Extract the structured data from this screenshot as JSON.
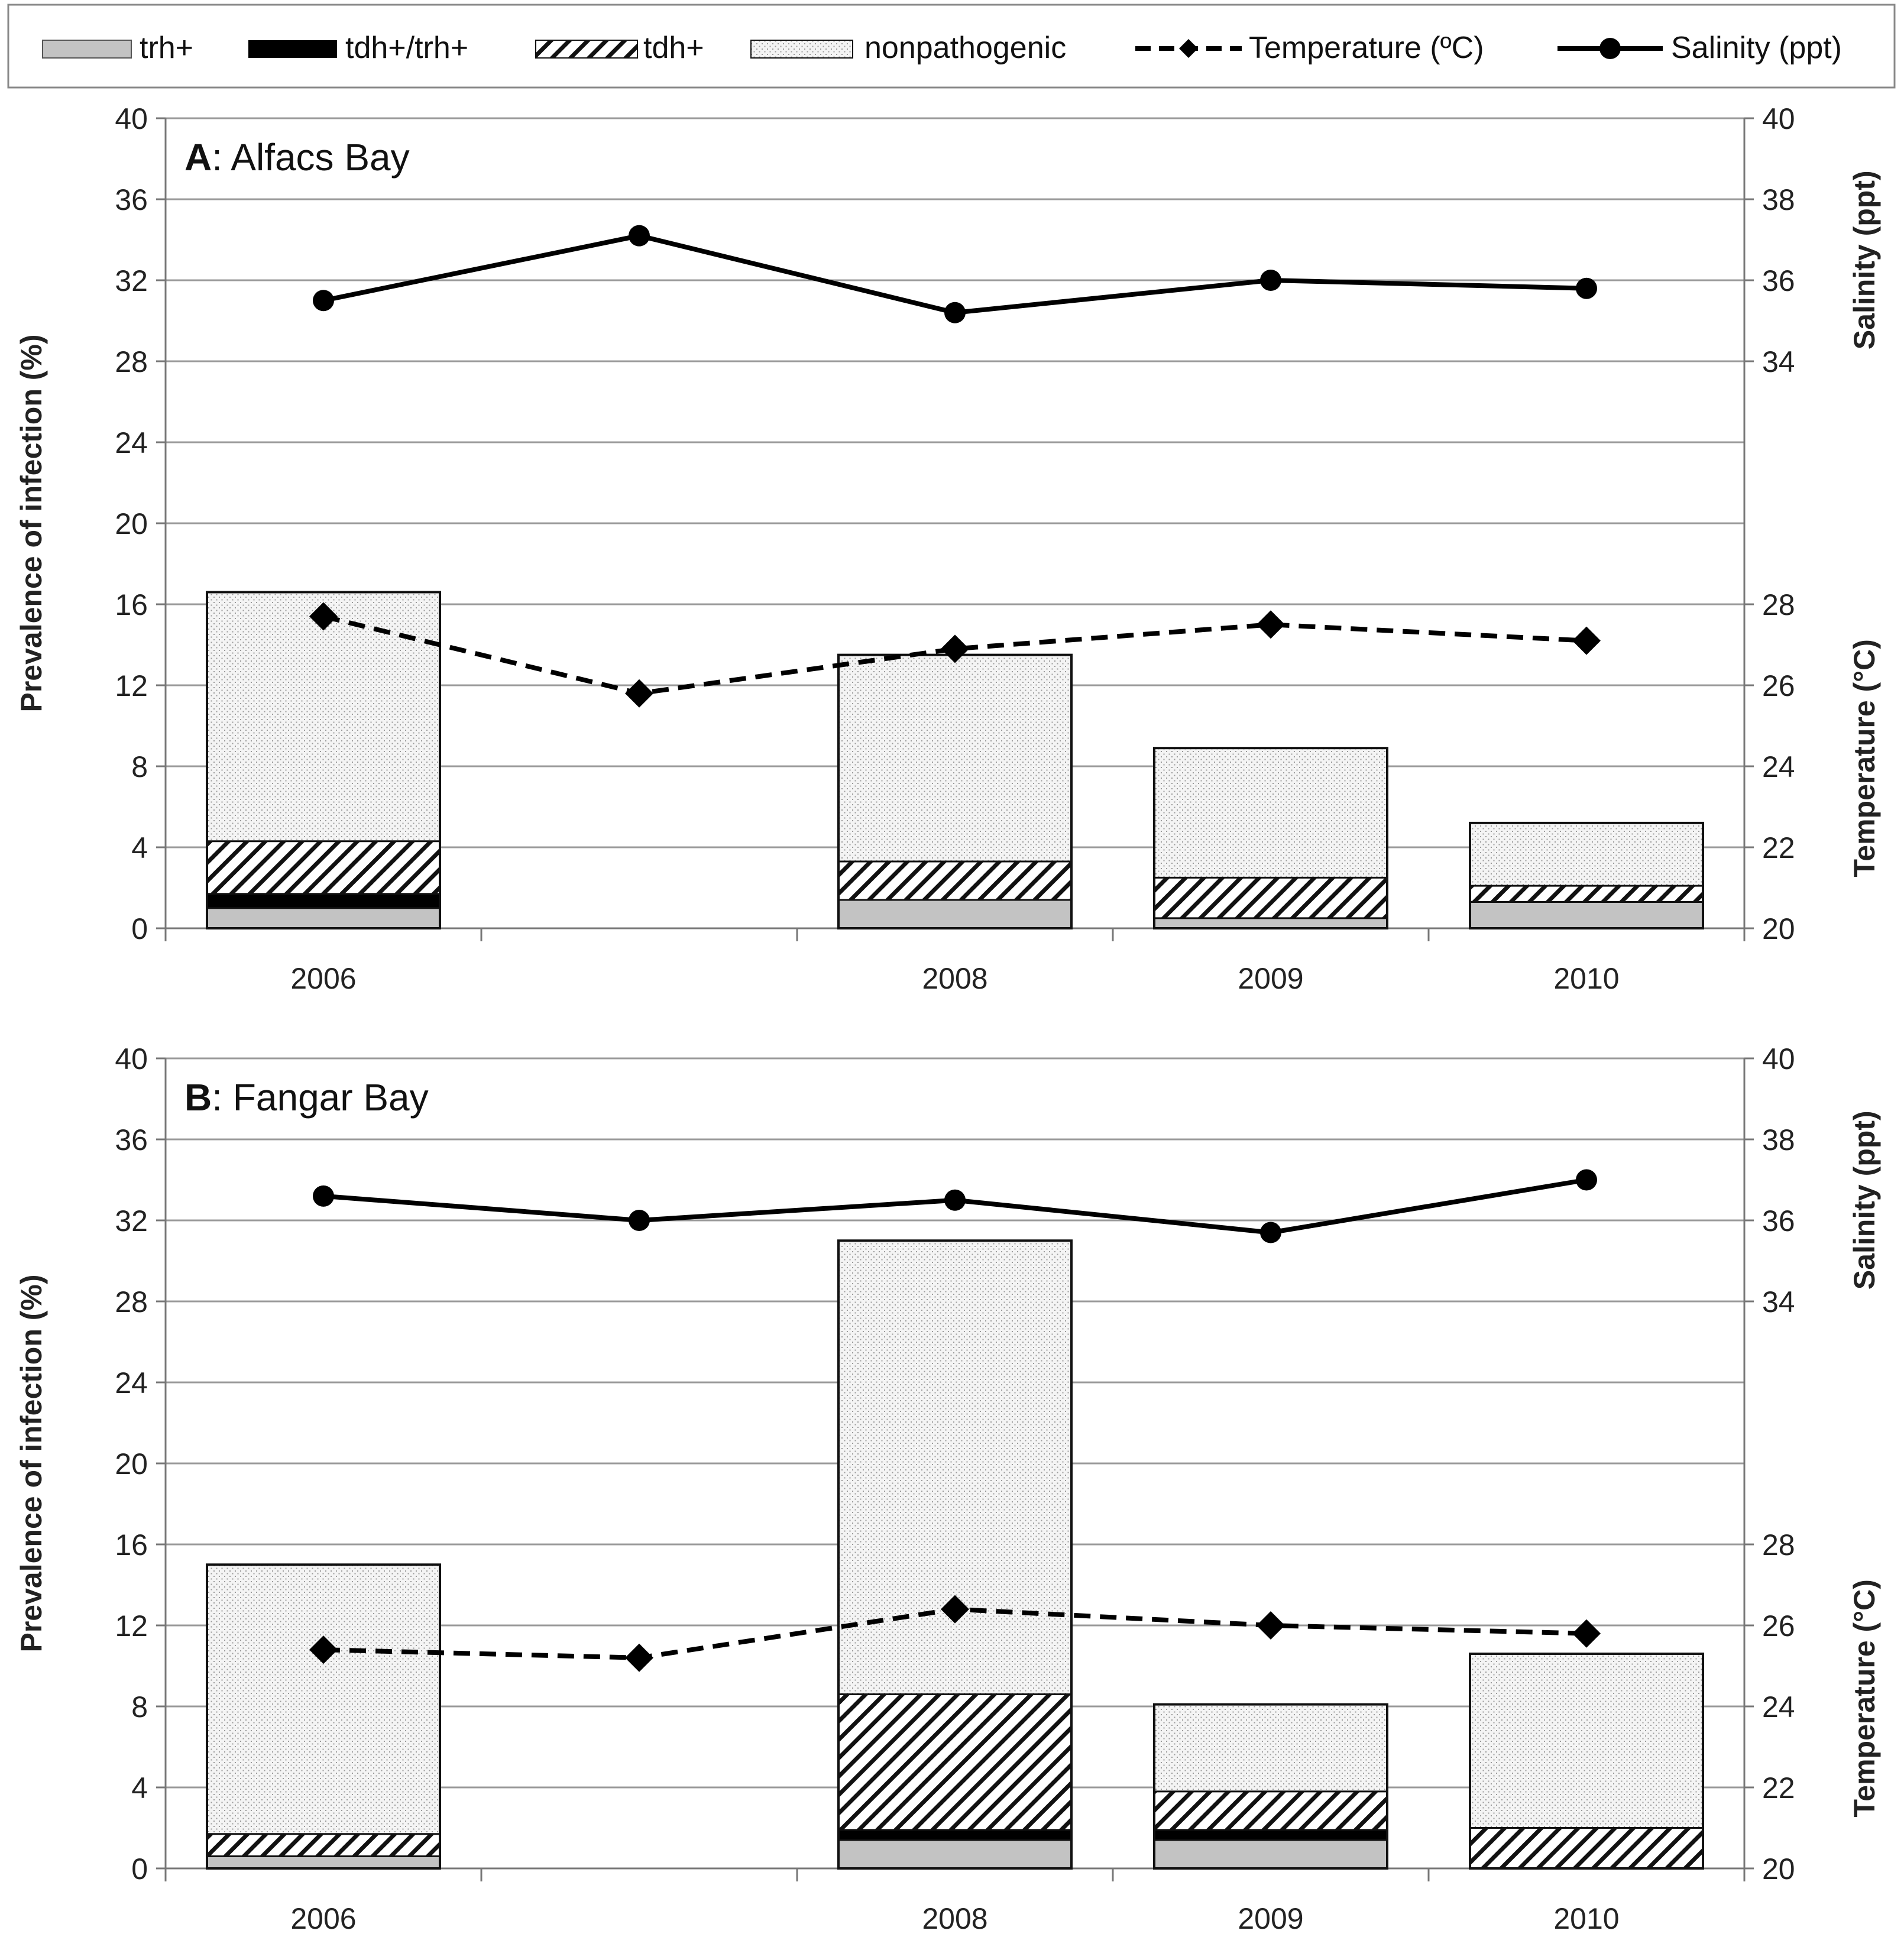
{
  "chart_data": {
    "type": "bar",
    "legend": {
      "position": "top",
      "entries": [
        "trh+",
        "tdh+/trh+",
        "tdh+",
        "nonpathogenic",
        "Temperature (ºC)",
        "Salinity (ppt)"
      ]
    },
    "categories": [
      "2006",
      "",
      "2008",
      "2009",
      "2010"
    ],
    "panels": [
      {
        "title_letter": "A",
        "title_rest": ": Alfacs Bay",
        "ylabel_left": "Prevalence of infection (%)",
        "ylabel_right_top": "Salinity (ppt)",
        "ylabel_right_bottom": "Temperature (°C)",
        "left_ylim": [
          0,
          40
        ],
        "left_ticks": [
          "0",
          "4",
          "8",
          "12",
          "16",
          "20",
          "24",
          "28",
          "32",
          "36",
          "40"
        ],
        "salinity_ylim": [
          20,
          40
        ],
        "salinity_ticks": [
          "34",
          "36",
          "38",
          "40"
        ],
        "temperature_ylim": [
          20,
          40
        ],
        "temperature_ticks": [
          "20",
          "22",
          "24",
          "26",
          "28"
        ],
        "series": [
          {
            "name": "trh+",
            "values": [
              1.0,
              null,
              1.4,
              0.5,
              1.3
            ]
          },
          {
            "name": "tdh+/trh+",
            "values": [
              0.7,
              null,
              0,
              0,
              0
            ]
          },
          {
            "name": "tdh+",
            "values": [
              2.6,
              null,
              1.9,
              2.0,
              0.8
            ]
          },
          {
            "name": "nonpathogenic",
            "values": [
              12.3,
              null,
              10.2,
              6.4,
              3.1
            ]
          }
        ],
        "temperature": [
          27.7,
          25.8,
          26.9,
          27.5,
          27.1
        ],
        "salinity": [
          35.5,
          37.1,
          35.2,
          36.0,
          35.8
        ]
      },
      {
        "title_letter": "B",
        "title_rest": ": Fangar Bay",
        "ylabel_left": "Prevalence of infection (%)",
        "ylabel_right_top": "Salinity (ppt)",
        "ylabel_right_bottom": "Temperature (°C)",
        "left_ylim": [
          0,
          40
        ],
        "left_ticks": [
          "0",
          "4",
          "8",
          "12",
          "16",
          "20",
          "24",
          "28",
          "32",
          "36",
          "40"
        ],
        "salinity_ylim": [
          20,
          40
        ],
        "salinity_ticks": [
          "34",
          "36",
          "38",
          "40"
        ],
        "temperature_ylim": [
          20,
          40
        ],
        "temperature_ticks": [
          "20",
          "22",
          "24",
          "26",
          "28"
        ],
        "series": [
          {
            "name": "trh+",
            "values": [
              0.6,
              null,
              1.4,
              1.4,
              0
            ]
          },
          {
            "name": "tdh+/trh+",
            "values": [
              0,
              null,
              0.5,
              0.5,
              0
            ]
          },
          {
            "name": "tdh+",
            "values": [
              1.1,
              null,
              6.7,
              1.9,
              2.0
            ]
          },
          {
            "name": "nonpathogenic",
            "values": [
              13.3,
              null,
              22.4,
              4.3,
              8.6
            ]
          }
        ],
        "temperature": [
          25.4,
          25.2,
          26.4,
          26.0,
          25.8
        ],
        "salinity": [
          36.6,
          36.0,
          36.5,
          35.7,
          37.0
        ]
      }
    ]
  }
}
